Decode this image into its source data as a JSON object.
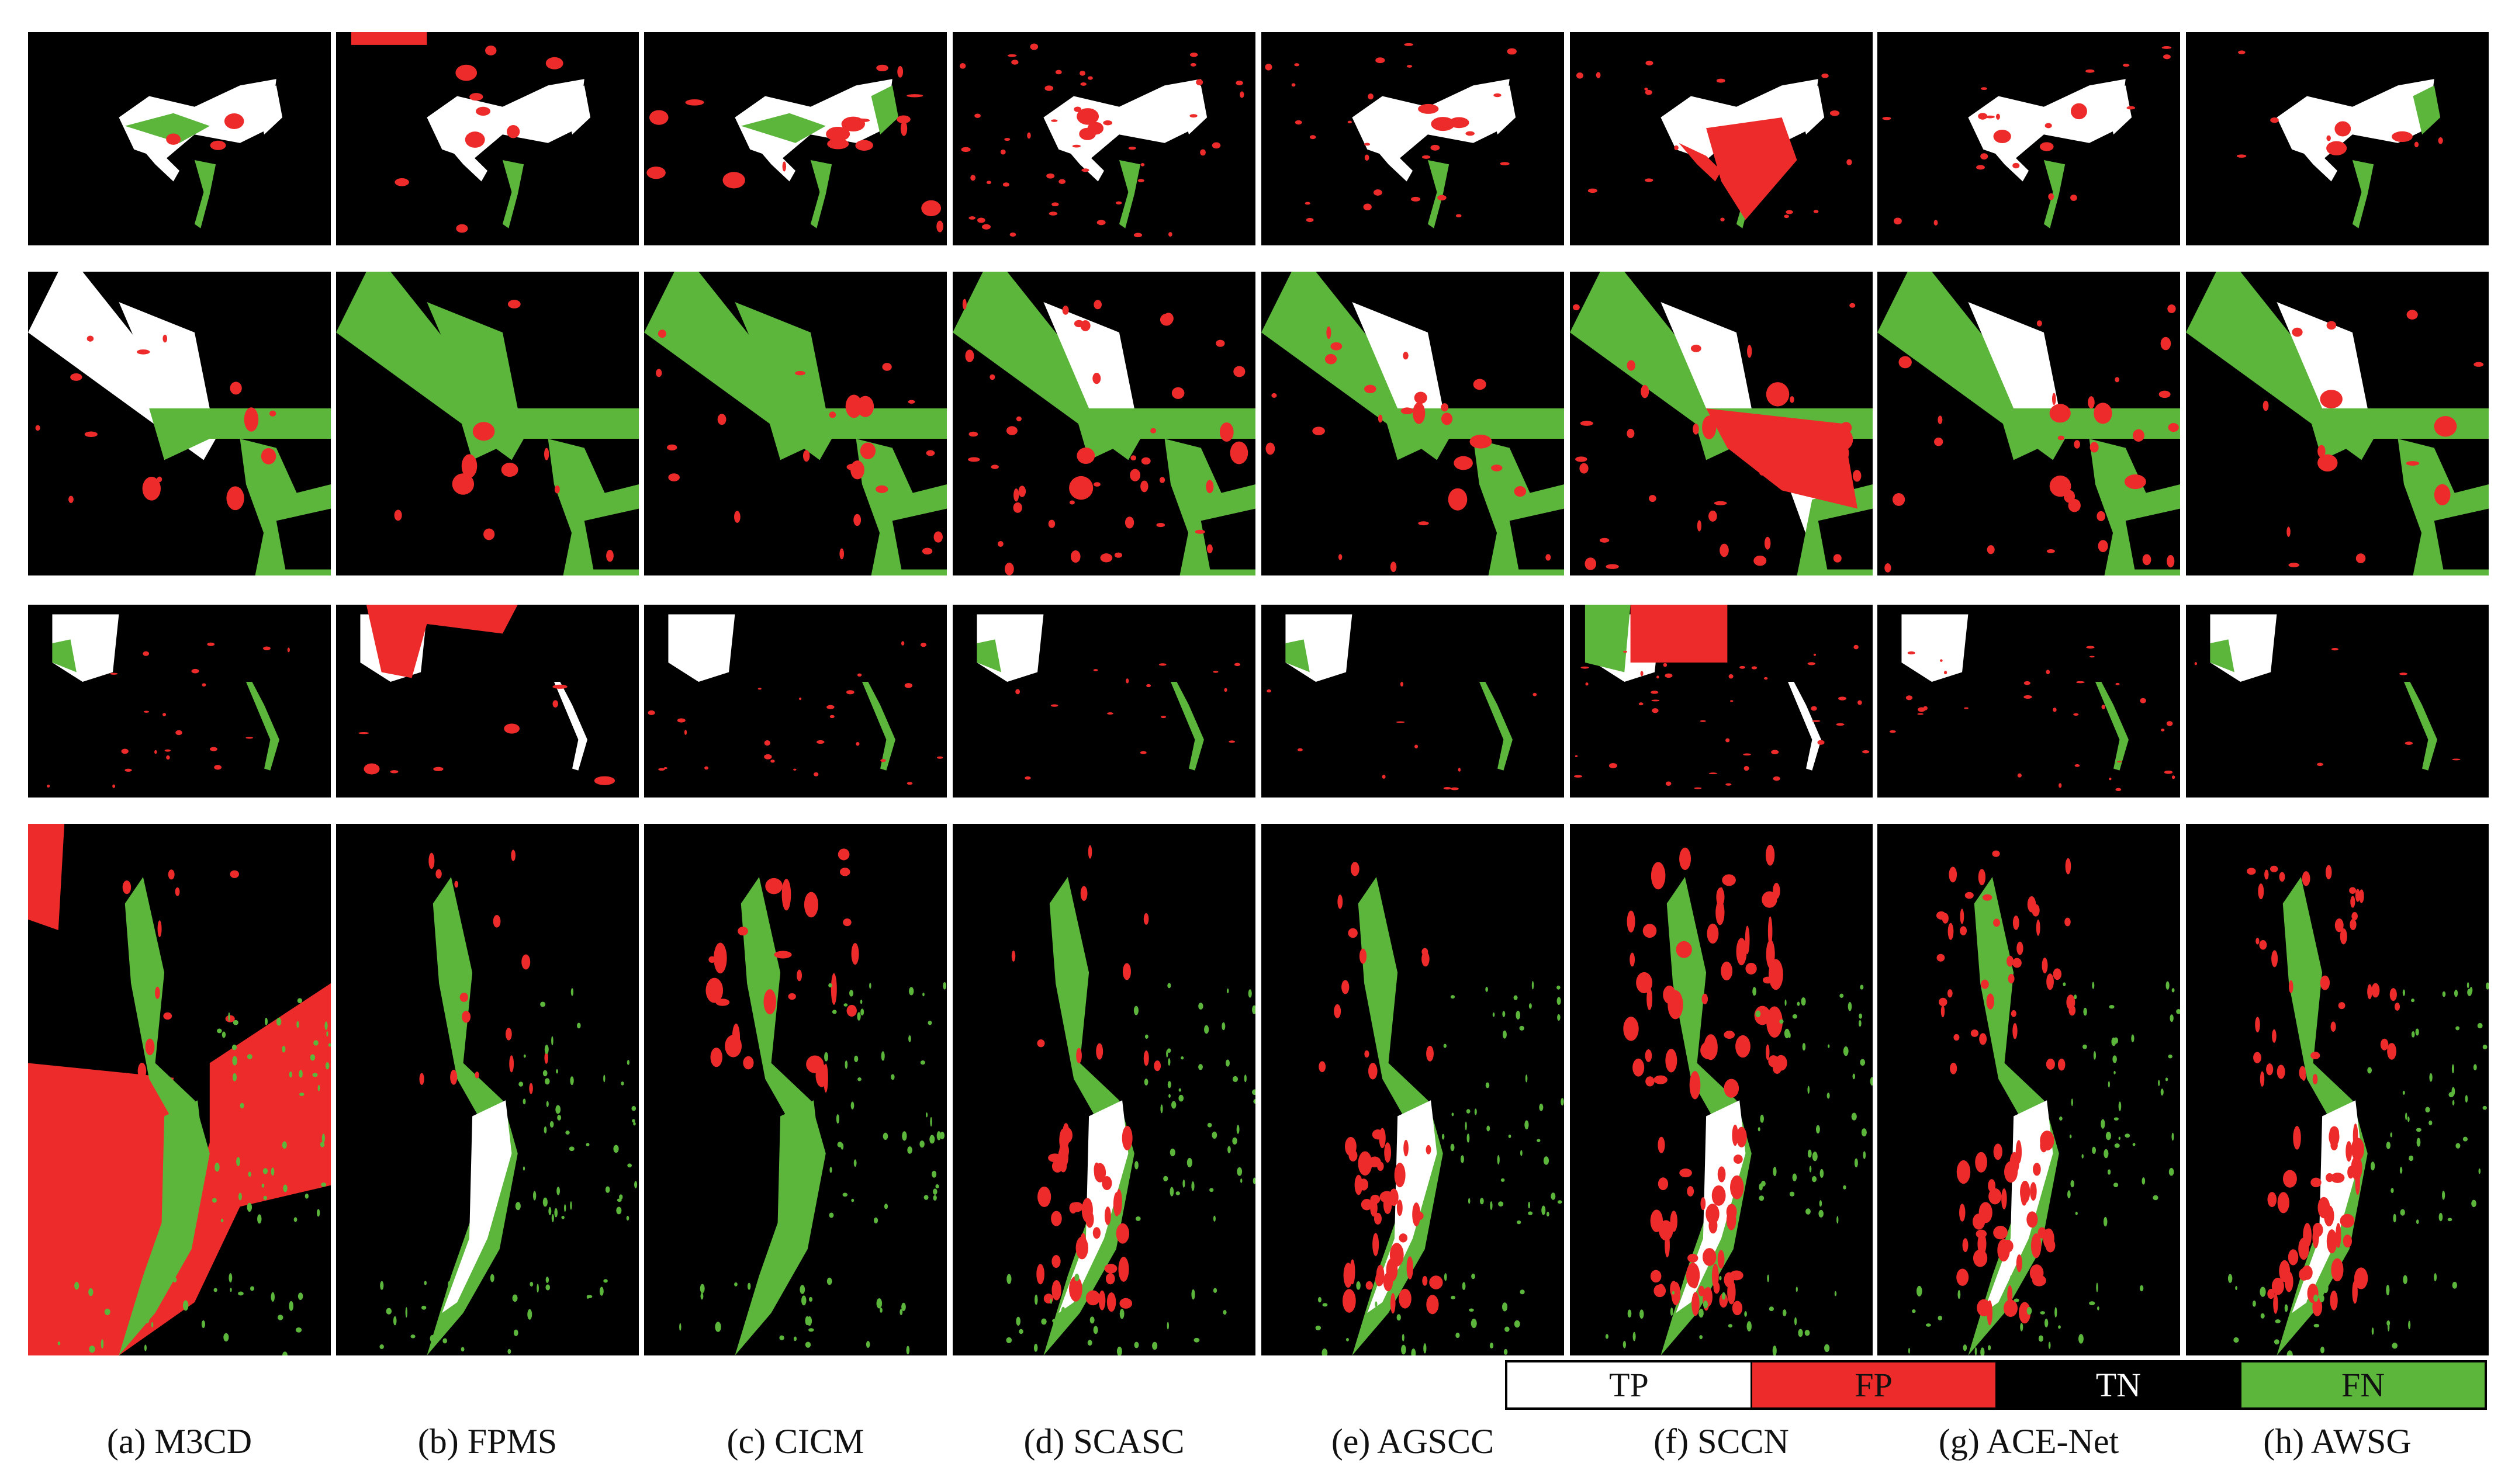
{
  "colors": {
    "tp": "#ffffff",
    "fp": "#ee2b2b",
    "tn": "#000000",
    "fn": "#5cb63c"
  },
  "captions": [
    "(a) M3CD",
    "(b) FPMS",
    "(c) CICM",
    "(d) SCASC",
    "(e) AGSCC",
    "(f) SCCN",
    "(g) ACE-Net",
    "(h) AWSG"
  ],
  "legend": [
    {
      "label": "TP",
      "color": "#ffffff",
      "text_color": "#111111"
    },
    {
      "label": "FP",
      "color": "#ee2b2b",
      "text_color": "#111111"
    },
    {
      "label": "TN",
      "color": "#000000",
      "text_color": "#ffffff"
    },
    {
      "label": "FN",
      "color": "#5cb63c",
      "text_color": "#111111"
    }
  ]
}
